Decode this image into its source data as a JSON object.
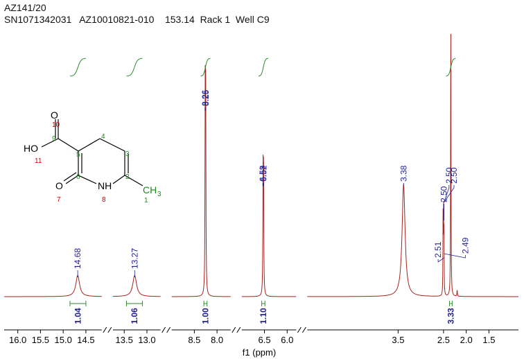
{
  "header": {
    "line1": "AZ141/20",
    "line2": "SN1071342031   AZ10010821-010    153.14  Rack 1  Well C9"
  },
  "colors": {
    "spectrum": "#a8201a",
    "peak_label": "#1f1f99",
    "integral_curve": "#2e8b2e",
    "atom_number_green": "#1a8c1a",
    "atom_number_red": "#cc0000",
    "axis": "#000000"
  },
  "chart_data": {
    "type": "line",
    "xlabel": "f1 (ppm)",
    "x_reversed": true,
    "xlim": [
      16.3,
      0.85
    ],
    "axis_breaks": [
      [
        14.15,
        13.75
      ],
      [
        12.7,
        9.0
      ],
      [
        7.7,
        7.0
      ],
      [
        5.8,
        5.5
      ]
    ],
    "ticks": [
      {
        "v": 16.0,
        "label": "16.0"
      },
      {
        "v": 15.5,
        "label": "15.5"
      },
      {
        "v": 15.0,
        "label": "15.0"
      },
      {
        "v": 14.5,
        "label": "14.5"
      },
      {
        "v": 13.5,
        "label": "13.5"
      },
      {
        "v": 13.0,
        "label": "13.0"
      },
      {
        "v": 8.5,
        "label": "8.5"
      },
      {
        "v": 8.0,
        "label": "8.0"
      },
      {
        "v": 6.5,
        "label": "6.5"
      },
      {
        "v": 6.0,
        "label": "6.0"
      },
      {
        "v": 3.5,
        "label": "3.5"
      },
      {
        "v": 2.5,
        "label": "2.5"
      },
      {
        "v": 2.0,
        "label": "2.0"
      },
      {
        "v": 1.5,
        "label": "1.5"
      }
    ],
    "peaks": [
      {
        "shift": 14.68,
        "height": 0.1,
        "width": 0.05
      },
      {
        "shift": 13.27,
        "height": 0.1,
        "width": 0.05
      },
      {
        "shift": 8.26,
        "height": 0.88,
        "width": 0.006
      },
      {
        "shift": 8.25,
        "height": 0.88,
        "width": 0.006
      },
      {
        "shift": 6.53,
        "height": 0.53,
        "width": 0.006
      },
      {
        "shift": 6.52,
        "height": 0.53,
        "width": 0.006
      },
      {
        "shift": 3.38,
        "height": 0.53,
        "width": 0.04
      },
      {
        "shift": 2.51,
        "height": 0.37,
        "width": 0.004
      },
      {
        "shift": 2.5,
        "height": 0.37,
        "width": 0.004
      },
      {
        "shift": 2.49,
        "height": 0.3,
        "width": 0.004
      },
      {
        "shift": 2.34,
        "height": 1.3,
        "width": 0.005
      },
      {
        "shift": 2.2,
        "height": 0.03,
        "width": 0.006
      }
    ],
    "peak_labels": [
      {
        "text": "14.68",
        "shift": 14.68
      },
      {
        "text": "13.27",
        "shift": 13.27
      },
      {
        "text": "8.26",
        "shift": 8.265
      },
      {
        "text": "8.25",
        "shift": 8.245
      },
      {
        "text": "6.53",
        "shift": 6.535
      },
      {
        "text": "6.52",
        "shift": 6.515
      },
      {
        "text": "3.38",
        "shift": 3.38
      },
      {
        "text": "2.51",
        "shift": 2.62
      },
      {
        "text": "2.50",
        "shift": 2.49
      },
      {
        "text": "2.50",
        "shift": 2.38
      },
      {
        "text": "2.50",
        "shift": 2.27
      },
      {
        "text": "2.49",
        "shift": 2.02
      }
    ],
    "integrals": [
      {
        "from": 14.85,
        "to": 14.5,
        "value": "1.04"
      },
      {
        "from": 13.45,
        "to": 13.1,
        "value": "1.06"
      },
      {
        "from": 8.29,
        "to": 8.22,
        "value": "1.00"
      },
      {
        "from": 6.56,
        "to": 6.49,
        "value": "1.10"
      },
      {
        "from": 2.37,
        "to": 2.31,
        "value": "3.33"
      }
    ]
  },
  "structure": {
    "labels": {
      "O_top": "O",
      "HO": "HO",
      "O_left": "O",
      "NH": "NH",
      "CH3": "CH",
      "CH3_sub": "3"
    },
    "numbers": [
      "10",
      "9",
      "11",
      "5",
      "4",
      "3",
      "6",
      "2",
      "7",
      "8",
      "1"
    ]
  }
}
